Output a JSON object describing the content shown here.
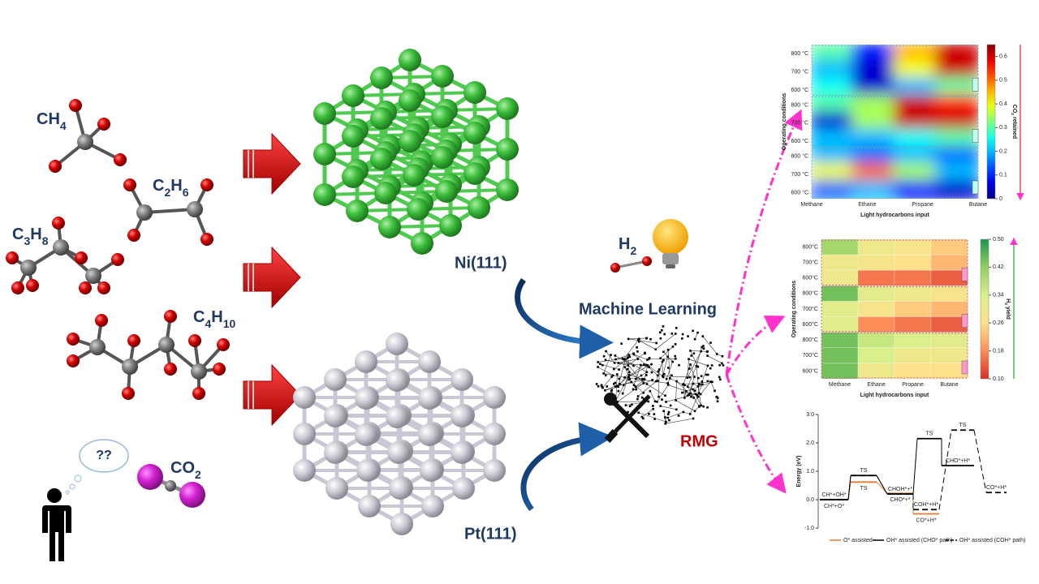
{
  "molecules": [
    {
      "formula": [
        "CH",
        "4"
      ]
    },
    {
      "formula": [
        "C",
        "2",
        "H",
        "6"
      ]
    },
    {
      "formula": [
        "C",
        "3",
        "H",
        "8"
      ]
    },
    {
      "formula": [
        "C",
        "4",
        "H",
        "10"
      ]
    }
  ],
  "co2": {
    "formula": [
      "CO",
      "2"
    ]
  },
  "question": "??",
  "h2": {
    "formula": [
      "H",
      "2"
    ]
  },
  "catalysts": [
    "Ni(111)",
    "Pt(111)"
  ],
  "machine_learning": "Machine Learning",
  "rmg": "RMG",
  "plots": [
    {
      "type": "heatmap",
      "colormap": "jet",
      "y_label": "Operating conditions",
      "x_label": "Light hydrocarbons input",
      "categories": [
        "Methane",
        "Ethane",
        "Propane",
        "Butane"
      ],
      "colorbar_label": [
        "CO",
        "2",
        " retained"
      ],
      "clim": [
        0,
        0.65
      ],
      "cticks": [
        0.6,
        0.5,
        0.4,
        0.3,
        0.2,
        0.1,
        0
      ],
      "blocks": [
        {
          "rows": [
            "800 °C",
            "700 °C",
            "600 °C"
          ],
          "values": [
            [
              0.3,
              0.1,
              0.45,
              0.6
            ],
            [
              0.2,
              0.05,
              0.4,
              0.6
            ],
            [
              0.25,
              0.05,
              0.2,
              0.3
            ]
          ]
        },
        {
          "rows": [
            "800 °C",
            "700 °C",
            "600 °C"
          ],
          "values": [
            [
              0.3,
              0.35,
              0.6,
              0.55
            ],
            [
              0.05,
              0.35,
              0.6,
              0.6
            ],
            [
              0.2,
              0.2,
              0.25,
              0.3
            ]
          ]
        },
        {
          "rows": [
            "800 °C",
            "700 °C",
            "600 °C"
          ],
          "values": [
            [
              0.2,
              0.15,
              0.2,
              0.15
            ],
            [
              0.4,
              0.5,
              0.35,
              0.2
            ],
            [
              0.15,
              0.2,
              0.1,
              0.05
            ]
          ]
        }
      ]
    },
    {
      "type": "heatmap",
      "colormap": "RdYlGn",
      "y_label": "Operating conditions",
      "x_label": "Light hydrocarbons input",
      "categories": [
        "Methane",
        "Ethane",
        "Propane",
        "Butane"
      ],
      "colorbar_label": [
        "H",
        "2",
        " yield"
      ],
      "clim": [
        0.1,
        0.5
      ],
      "cticks": [
        {
          "value": 0.5,
          "label": "0.50"
        },
        0.42,
        0.34,
        0.26,
        0.18,
        {
          "value": 0.1,
          "label": "0.10"
        }
      ],
      "blocks": [
        {
          "rows": [
            "800°C",
            "700°C",
            "600°C"
          ],
          "values": [
            [
              0.4,
              0.3,
              0.28,
              0.24
            ],
            [
              0.3,
              0.28,
              0.26,
              0.22
            ],
            [
              0.3,
              0.16,
              0.16,
              0.14
            ]
          ]
        },
        {
          "rows": [
            "800°C",
            "700°C",
            "600°C"
          ],
          "values": [
            [
              0.44,
              0.32,
              0.3,
              0.28
            ],
            [
              0.32,
              0.28,
              0.24,
              0.22
            ],
            [
              0.32,
              0.18,
              0.16,
              0.14
            ]
          ]
        },
        {
          "rows": [
            "800°C",
            "700°C",
            "600°C"
          ],
          "values": [
            [
              0.44,
              0.36,
              0.34,
              0.32
            ],
            [
              0.44,
              0.34,
              0.3,
              0.3
            ],
            [
              0.44,
              0.3,
              0.26,
              0.26
            ]
          ]
        }
      ]
    },
    {
      "type": "energy",
      "y_label": "Energy (eV)",
      "ylim": [
        -1,
        3
      ],
      "yticks": [
        {
          "value": 3,
          "label": "3.0"
        },
        {
          "value": 2,
          "label": "2.0"
        },
        {
          "value": 1,
          "label": "1.0"
        },
        {
          "value": 0,
          "label": "0.0"
        },
        {
          "value": -1,
          "label": "-1.0"
        }
      ],
      "series": [
        {
          "name": "O* assisted",
          "color": "#e07b39",
          "dash": false,
          "values": [
            0,
            0.62,
            0.22,
            -0.5
          ],
          "labels": [
            "CH*+O*",
            "TS",
            "CHO*+*",
            "CO*+H*"
          ]
        },
        {
          "name": "OH* assisted (CHO* path)",
          "color": "#000000",
          "dash": false,
          "values": [
            0,
            0.85,
            0.2,
            2.15,
            1.2
          ],
          "labels": [
            "CH*+OH*",
            "TS",
            "CHOH*+*",
            "TS",
            "CHO*+H*"
          ]
        },
        {
          "name": "OH* assisted (COH* path)",
          "color": "#000000",
          "dash": true,
          "values": [
            0,
            0.85,
            0.2,
            -0.35,
            2.45,
            0.25
          ],
          "labels": [
            null,
            null,
            null,
            "COH*+H*",
            "TS",
            "CO*+H*"
          ]
        }
      ]
    }
  ]
}
